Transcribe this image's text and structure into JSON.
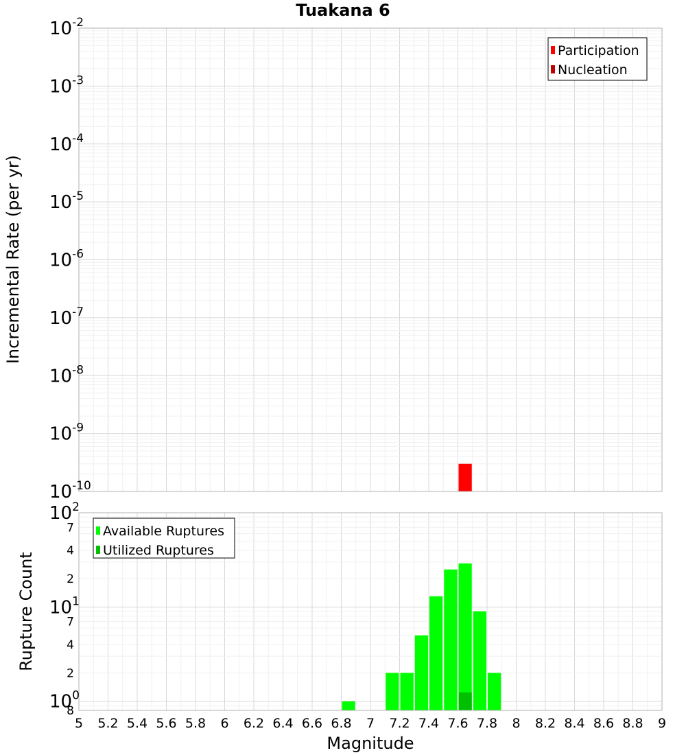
{
  "title": "Tuakana 6",
  "chart_data": [
    {
      "type": "bar",
      "title": "Tuakana 6",
      "ylabel": "Incremental Rate (per yr)",
      "xlabel": "",
      "yscale": "log",
      "ylim": [
        1e-10,
        0.01
      ],
      "xlim": [
        5,
        9
      ],
      "grid": true,
      "legend_position": "top-right",
      "y_tick_exponents": [
        "-2",
        "-3",
        "-4",
        "-5",
        "-6",
        "-7",
        "-8",
        "-9",
        "-10"
      ],
      "legend": [
        "Participation",
        "Nucleation"
      ],
      "series": [
        {
          "name": "Participation",
          "color": "#ff0000",
          "x": [
            7.65
          ],
          "values": [
            3e-10
          ]
        },
        {
          "name": "Nucleation",
          "color": "#c00000",
          "x": [],
          "values": []
        }
      ]
    },
    {
      "type": "bar",
      "ylabel": "Rupture Count",
      "xlabel": "Magnitude",
      "yscale": "log",
      "ylim": [
        0.8,
        100
      ],
      "xlim": [
        5,
        9
      ],
      "grid": true,
      "legend_position": "top-left",
      "x_ticks": [
        "5",
        "5.2",
        "5.4",
        "5.6",
        "5.8",
        "6",
        "6.2",
        "6.4",
        "6.6",
        "6.8",
        "7",
        "7.2",
        "7.4",
        "7.6",
        "7.8",
        "8",
        "8.2",
        "8.4",
        "8.6",
        "8.8",
        "9"
      ],
      "y_major_ticks": [
        {
          "base": "10",
          "exp": "2",
          "value": 100
        },
        {
          "base": "10",
          "exp": "1",
          "value": 10
        },
        {
          "base": "10",
          "exp": "0",
          "value": 1
        }
      ],
      "y_minor_ticks": [
        {
          "label": "7",
          "value": 70
        },
        {
          "label": "4",
          "value": 40
        },
        {
          "label": "2",
          "value": 20
        },
        {
          "label": "7",
          "value": 7
        },
        {
          "label": "4",
          "value": 4
        },
        {
          "label": "2",
          "value": 2
        },
        {
          "label": "8",
          "value": 0.8
        }
      ],
      "legend": [
        "Available Ruptures",
        "Utilized Ruptures"
      ],
      "series": [
        {
          "name": "Available Ruptures",
          "color": "#00ff00",
          "x": [
            6.85,
            7.15,
            7.25,
            7.35,
            7.45,
            7.55,
            7.65,
            7.75,
            7.85
          ],
          "values": [
            1,
            2,
            2,
            5,
            13,
            25,
            29,
            9,
            2
          ]
        },
        {
          "name": "Utilized Ruptures",
          "color": "#00c000",
          "x": [
            7.65
          ],
          "values": [
            1
          ]
        }
      ]
    }
  ]
}
